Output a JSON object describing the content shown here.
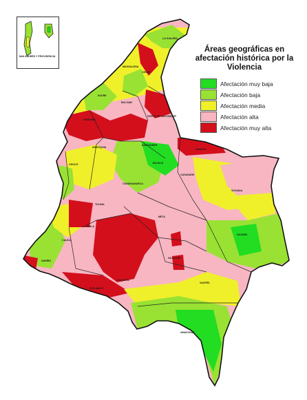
{
  "map": {
    "title": "Áreas geográficas en afectación histórica por la Violencia",
    "inset_label": "SAN ANDRÉS Y PROVIDENCIA",
    "legend": [
      {
        "label": "Afectación muy baja",
        "color": "#22dd22"
      },
      {
        "label": "Afectación baja",
        "color": "#99e233"
      },
      {
        "label": "Afectación media",
        "color": "#f0f02a"
      },
      {
        "label": "Afectación alta",
        "color": "#f7b6c2"
      },
      {
        "label": "Afectación muy alta",
        "color": "#d40f1c"
      }
    ],
    "region_labels": [
      "LA GUAJIRA",
      "MAGDALENA",
      "CESAR",
      "BOLÍVAR",
      "SUCRE",
      "CÓRDOBA",
      "ANTIOQUIA",
      "SANTANDER",
      "NORTE DE SANTANDER",
      "ARAUCA",
      "CASANARE",
      "CHOCÓ",
      "BOYACÁ",
      "CUNDINAMARCA",
      "VICHADA",
      "META",
      "GUAINÍA",
      "TOLIMA",
      "HUILA",
      "CAUCA",
      "NARIÑO",
      "CAQUETÁ",
      "GUAVIARE",
      "VAUPÉS",
      "AMAZONAS",
      "PUTUMAYO"
    ]
  }
}
